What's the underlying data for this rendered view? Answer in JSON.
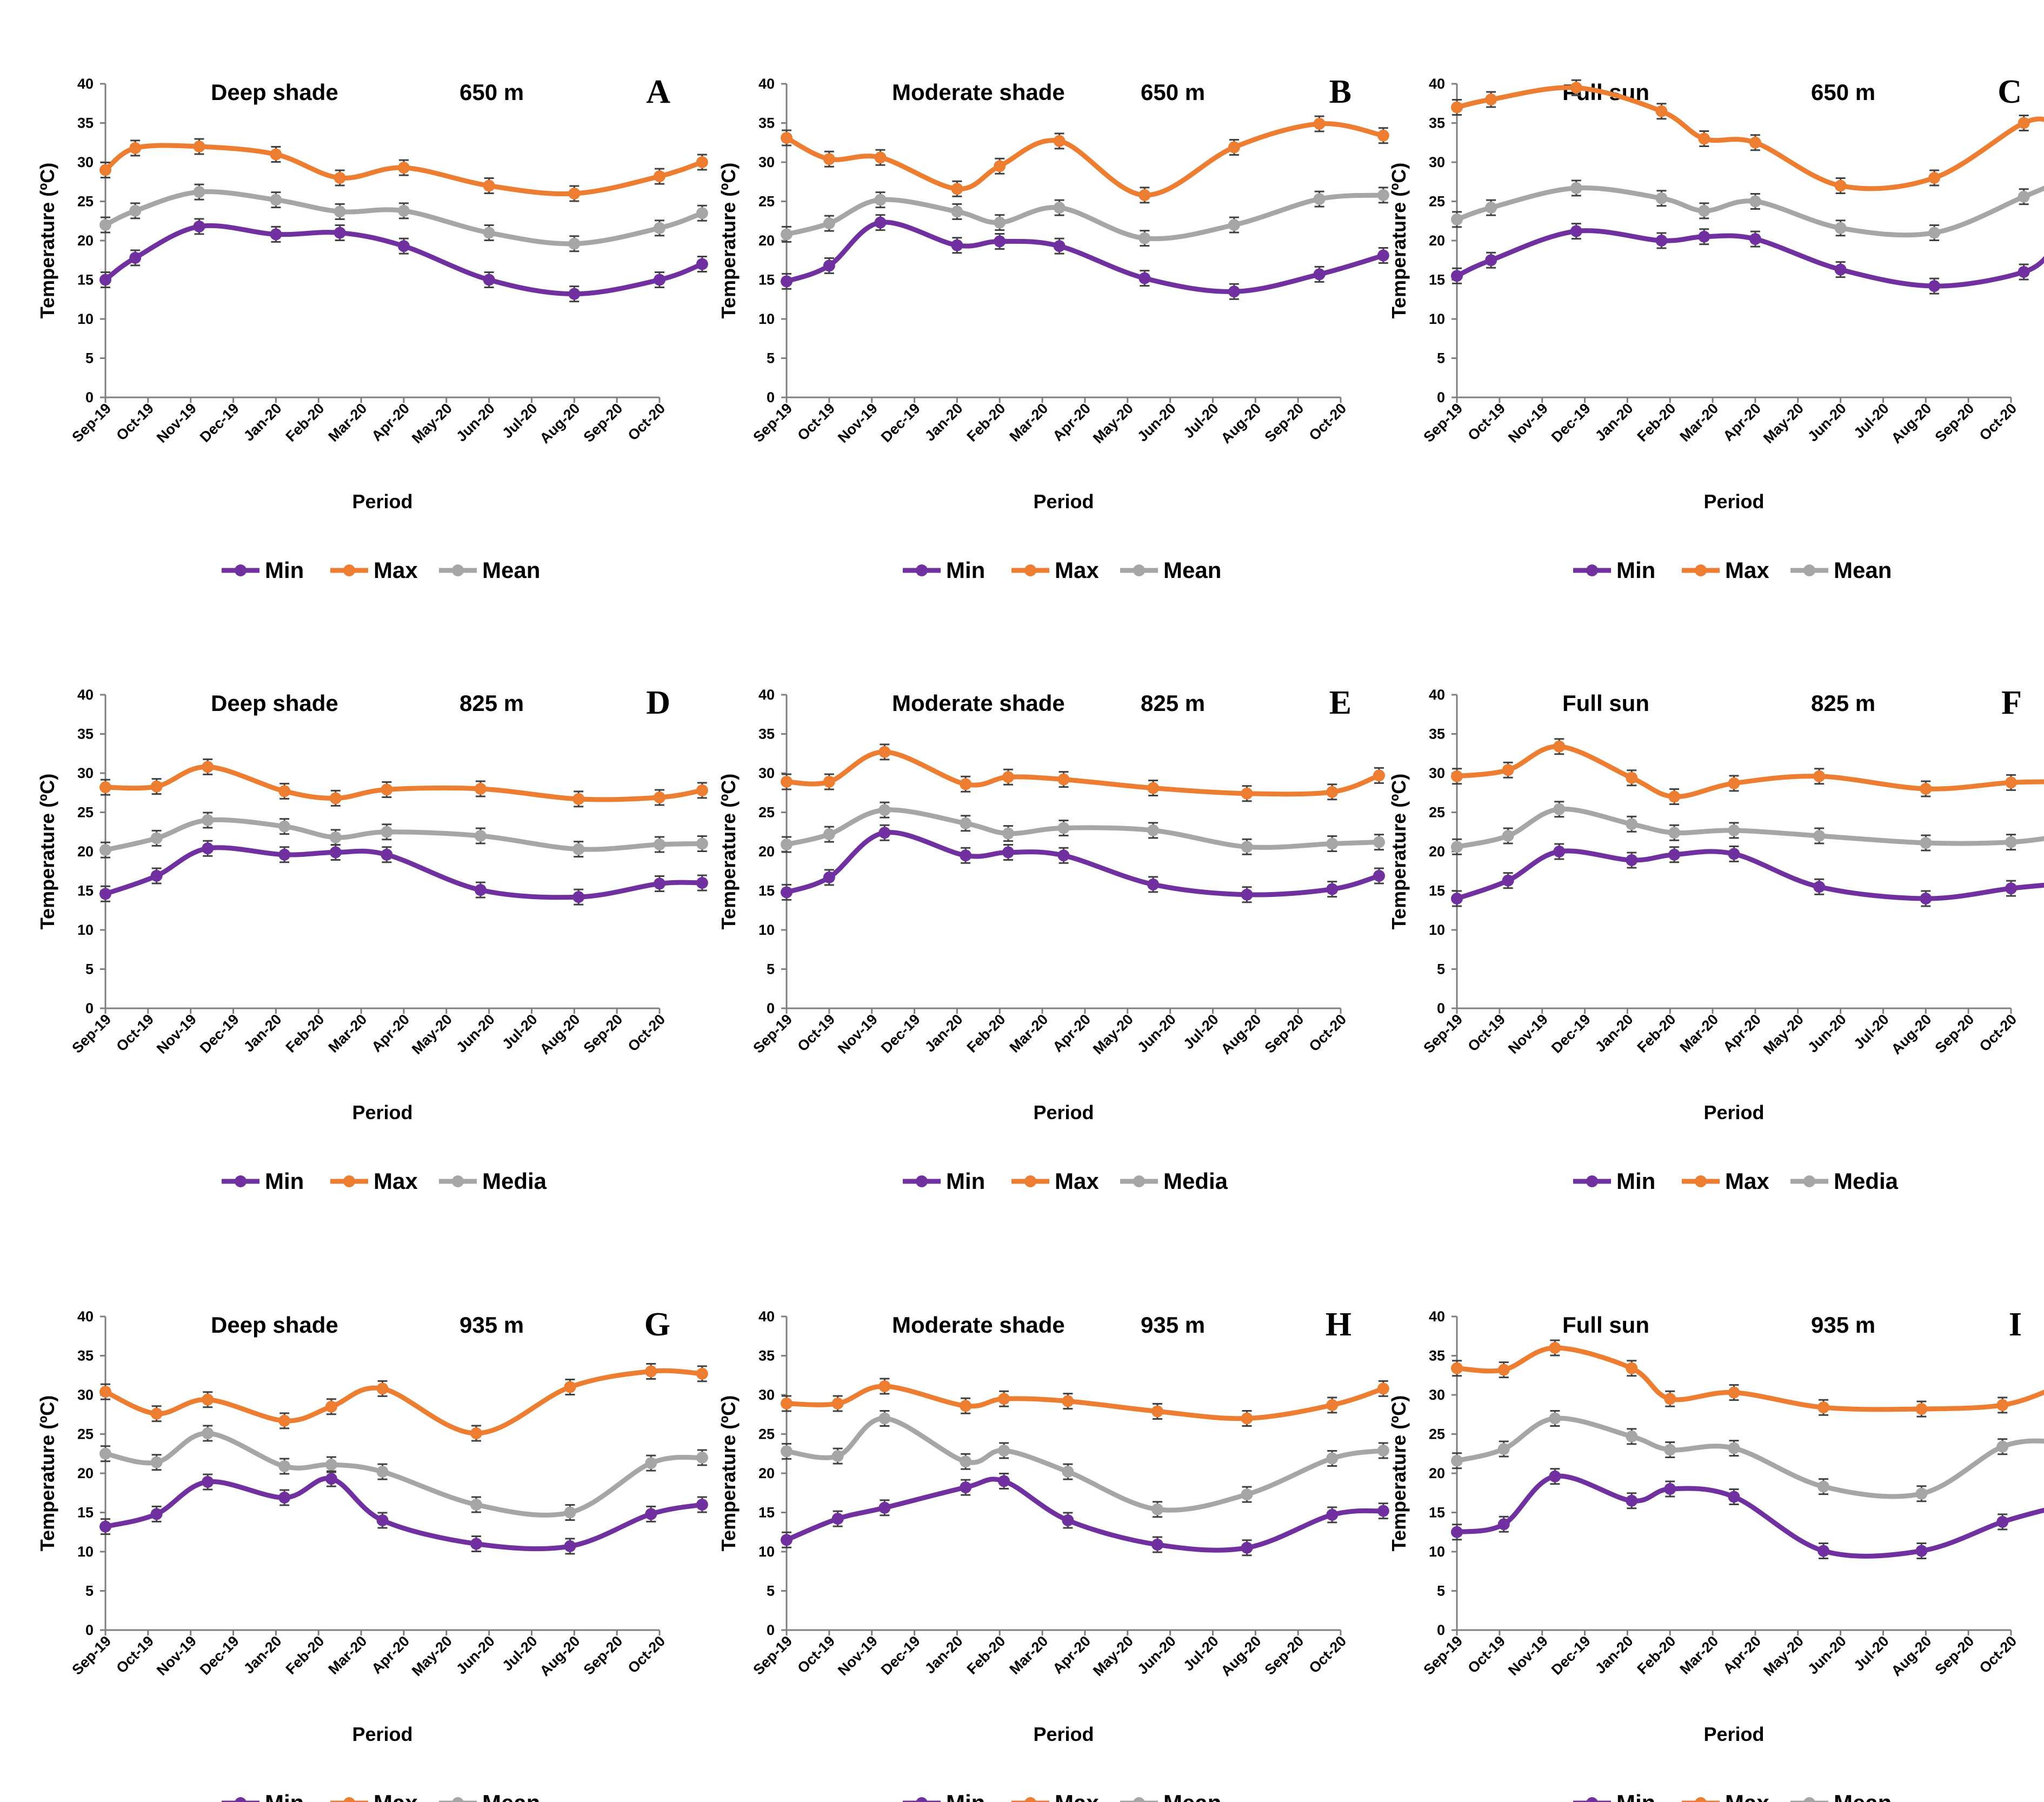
{
  "figure": {
    "legend_position": "bottom-center",
    "colors": {
      "Min": "#7030a0",
      "Max": "#ed7d31",
      "Mean": "#a6a6a6",
      "Media": "#a6a6a6"
    }
  },
  "chart_data": [
    {
      "panel": "A",
      "type": "line",
      "title": "Deep shade",
      "elevation": "650 m",
      "xlabel": "Period",
      "ylabel": "Temperature (ºC)",
      "ylim": [
        0,
        40
      ],
      "yticks": [
        0,
        5,
        10,
        15,
        20,
        25,
        30,
        35,
        40
      ],
      "grid": false,
      "categories": [
        "Sep-19",
        "Oct-19",
        "Nov-19",
        "Dec-19",
        "Jan-20",
        "Feb-20",
        "Mar-20",
        "Apr-20",
        "May-20",
        "Jun-20",
        "Jul-20",
        "Aug-20",
        "Sep-20",
        "Oct-20"
      ],
      "series": [
        {
          "name": "Min",
          "x": [
            0,
            0.7,
            2.2,
            4,
            5.5,
            7,
            9,
            11,
            13,
            14
          ],
          "values": [
            15,
            17.8,
            21.8,
            20.8,
            21,
            19.3,
            15,
            13.2,
            15,
            17
          ]
        },
        {
          "name": "Max",
          "x": [
            0,
            0.7,
            2.2,
            4,
            5.5,
            7,
            9,
            11,
            13,
            14
          ],
          "values": [
            29,
            31.8,
            32,
            31,
            28,
            29.3,
            27,
            26,
            28.2,
            30
          ]
        },
        {
          "name": "Mean",
          "x": [
            0,
            0.7,
            2.2,
            4,
            5.5,
            7,
            9,
            11,
            13,
            14
          ],
          "values": [
            22,
            23.8,
            26.2,
            25.2,
            23.7,
            23.8,
            21,
            19.6,
            21.6,
            23.5
          ]
        }
      ]
    },
    {
      "panel": "B",
      "type": "line",
      "title": "Moderate shade",
      "elevation": "650 m",
      "xlabel": "Period",
      "ylabel": "Temperature (ºC)",
      "ylim": [
        0,
        40
      ],
      "yticks": [
        0,
        5,
        10,
        15,
        20,
        25,
        30,
        35,
        40
      ],
      "grid": false,
      "categories": [
        "Sep-19",
        "Oct-19",
        "Nov-19",
        "Dec-19",
        "Jan-20",
        "Feb-20",
        "Mar-20",
        "Apr-20",
        "May-20",
        "Jun-20",
        "Jul-20",
        "Aug-20",
        "Sep-20",
        "Oct-20"
      ],
      "series": [
        {
          "name": "Min",
          "x": [
            0,
            1,
            2.2,
            4,
            5,
            6.4,
            8.4,
            10.5,
            12.5,
            14
          ],
          "values": [
            14.8,
            16.8,
            22.3,
            19.4,
            19.9,
            19.3,
            15.2,
            13.5,
            15.7,
            18.1
          ]
        },
        {
          "name": "Max",
          "x": [
            0,
            1,
            2.2,
            4,
            5,
            6.4,
            8.4,
            10.5,
            12.5,
            14
          ],
          "values": [
            33.1,
            30.4,
            30.6,
            26.6,
            29.5,
            32.7,
            25.8,
            31.9,
            34.9,
            33.4
          ]
        },
        {
          "name": "Mean",
          "x": [
            0,
            1,
            2.2,
            4,
            5,
            6.4,
            8.4,
            10.5,
            12.5,
            14
          ],
          "values": [
            20.8,
            22.2,
            25.2,
            23.7,
            22.3,
            24.2,
            20.3,
            22,
            25.3,
            25.8
          ]
        }
      ]
    },
    {
      "panel": "C",
      "type": "line",
      "title": "Full sun",
      "elevation": "650 m",
      "xlabel": "Period",
      "ylabel": "Temperature (ºC)",
      "ylim": [
        0,
        40
      ],
      "yticks": [
        0,
        5,
        10,
        15,
        20,
        25,
        30,
        35,
        40
      ],
      "grid": false,
      "categories": [
        "Sep-19",
        "Oct-19",
        "Nov-19",
        "Dec-19",
        "Jan-20",
        "Feb-20",
        "Mar-20",
        "Apr-20",
        "May-20",
        "Jun-20",
        "Jul-20",
        "Aug-20",
        "Sep-20",
        "Oct-20"
      ],
      "series": [
        {
          "name": "Min",
          "x": [
            0,
            0.8,
            2.8,
            4.8,
            5.8,
            7,
            9,
            11.2,
            13.3,
            14
          ],
          "values": [
            15.5,
            17.5,
            21.2,
            20,
            20.5,
            20.2,
            16.3,
            14.2,
            16,
            19
          ]
        },
        {
          "name": "Max",
          "x": [
            0,
            0.8,
            2.8,
            4.8,
            5.8,
            7,
            9,
            11.2,
            13.3,
            14
          ],
          "values": [
            37,
            38,
            39.5,
            36.5,
            33,
            32.5,
            27,
            28,
            35,
            35
          ]
        },
        {
          "name": "Mean",
          "x": [
            0,
            0.8,
            2.8,
            4.8,
            5.8,
            7,
            9,
            11.2,
            13.3,
            14
          ],
          "values": [
            22.7,
            24.2,
            26.7,
            25.4,
            23.8,
            25,
            21.6,
            21,
            25.6,
            27.2
          ]
        }
      ]
    },
    {
      "panel": "D",
      "type": "line",
      "title": "Deep shade",
      "elevation": "825 m",
      "xlabel": "Period",
      "ylabel": "Temperature (ºC)",
      "ylim": [
        0,
        40
      ],
      "yticks": [
        0,
        5,
        10,
        15,
        20,
        25,
        30,
        35,
        40
      ],
      "grid": false,
      "categories": [
        "Sep-19",
        "Oct-19",
        "Nov-19",
        "Dec-19",
        "Jan-20",
        "Feb-20",
        "Mar-20",
        "Apr-20",
        "May-20",
        "Jun-20",
        "Jul-20",
        "Aug-20",
        "Sep-20",
        "Oct-20"
      ],
      "series": [
        {
          "name": "Min",
          "x": [
            0,
            1.2,
            2.4,
            4.2,
            5.4,
            6.6,
            8.8,
            11.1,
            13,
            14
          ],
          "values": [
            14.6,
            16.9,
            20.4,
            19.6,
            19.9,
            19.6,
            15.1,
            14.2,
            15.9,
            16
          ]
        },
        {
          "name": "Max",
          "x": [
            0,
            1.2,
            2.4,
            4.2,
            5.4,
            6.6,
            8.8,
            11.1,
            13,
            14
          ],
          "values": [
            28.2,
            28.3,
            30.8,
            27.7,
            26.8,
            27.9,
            28,
            26.7,
            26.9,
            27.8
          ]
        },
        {
          "name": "Media",
          "x": [
            0,
            1.2,
            2.4,
            4.2,
            5.4,
            6.6,
            8.8,
            11.1,
            13,
            14
          ],
          "values": [
            20.2,
            21.7,
            24,
            23.2,
            21.8,
            22.5,
            22,
            20.3,
            20.9,
            21
          ]
        }
      ]
    },
    {
      "panel": "E",
      "type": "line",
      "title": "Moderate shade",
      "elevation": "825 m",
      "xlabel": "Period",
      "ylabel": "Temperature (ºC)",
      "ylim": [
        0,
        40
      ],
      "yticks": [
        0,
        5,
        10,
        15,
        20,
        25,
        30,
        35,
        40
      ],
      "grid": false,
      "categories": [
        "Sep-19",
        "Oct-19",
        "Nov-19",
        "Dec-19",
        "Jan-20",
        "Feb-20",
        "Mar-20",
        "Apr-20",
        "May-20",
        "Jun-20",
        "Jul-20",
        "Aug-20",
        "Sep-20",
        "Oct-20"
      ],
      "series": [
        {
          "name": "Min",
          "x": [
            0,
            1,
            2.3,
            4.2,
            5.2,
            6.5,
            8.6,
            10.8,
            12.8,
            13.9
          ],
          "values": [
            14.8,
            16.7,
            22.4,
            19.5,
            19.9,
            19.5,
            15.8,
            14.5,
            15.2,
            16.9
          ]
        },
        {
          "name": "Max",
          "x": [
            0,
            1,
            2.3,
            4.2,
            5.2,
            6.5,
            8.6,
            10.8,
            12.8,
            13.9
          ],
          "values": [
            28.9,
            28.9,
            32.7,
            28.6,
            29.5,
            29.2,
            28.1,
            27.4,
            27.6,
            29.7
          ]
        },
        {
          "name": "Media",
          "x": [
            0,
            1,
            2.3,
            4.2,
            5.2,
            6.5,
            8.6,
            10.8,
            12.8,
            13.9
          ],
          "values": [
            20.9,
            22.2,
            25.3,
            23.6,
            22.3,
            23,
            22.7,
            20.6,
            21,
            21.2
          ]
        }
      ]
    },
    {
      "panel": "F",
      "type": "line",
      "title": "Full sun",
      "elevation": "825 m",
      "xlabel": "Period",
      "ylabel": "Temperature (ºC)",
      "ylim": [
        0,
        40
      ],
      "yticks": [
        0,
        5,
        10,
        15,
        20,
        25,
        30,
        35,
        40
      ],
      "grid": false,
      "categories": [
        "Sep-19",
        "Oct-19",
        "Nov-19",
        "Dec-19",
        "Jan-20",
        "Feb-20",
        "Mar-20",
        "Apr-20",
        "May-20",
        "Jun-20",
        "Jul-20",
        "Aug-20",
        "Sep-20",
        "Oct-20"
      ],
      "series": [
        {
          "name": "Min",
          "x": [
            0,
            1.2,
            2.4,
            4.1,
            5.1,
            6.5,
            8.5,
            11,
            13,
            14.2
          ],
          "values": [
            14,
            16.3,
            20,
            18.9,
            19.6,
            19.7,
            15.5,
            14,
            15.3,
            15.9
          ]
        },
        {
          "name": "Max",
          "x": [
            0,
            1.2,
            2.4,
            4.1,
            5.1,
            6.5,
            8.5,
            11,
            13,
            14.2
          ],
          "values": [
            29.6,
            30.4,
            33.4,
            29.4,
            27,
            28.7,
            29.6,
            28,
            28.8,
            28.9
          ]
        },
        {
          "name": "Media",
          "x": [
            0,
            1.2,
            2.4,
            4.1,
            5.1,
            6.5,
            8.5,
            11,
            13,
            14.2
          ],
          "values": [
            20.6,
            22,
            25.4,
            23.5,
            22.4,
            22.7,
            22,
            21.1,
            21.2,
            22
          ]
        }
      ]
    },
    {
      "panel": "G",
      "type": "line",
      "title": "Deep shade",
      "elevation": "935 m",
      "xlabel": "Period",
      "ylabel": "Temperature (ºC)",
      "ylim": [
        0,
        40
      ],
      "yticks": [
        0,
        5,
        10,
        15,
        20,
        25,
        30,
        35,
        40
      ],
      "grid": false,
      "categories": [
        "Sep-19",
        "Oct-19",
        "Nov-19",
        "Dec-19",
        "Jan-20",
        "Feb-20",
        "Mar-20",
        "Apr-20",
        "May-20",
        "Jun-20",
        "Jul-20",
        "Aug-20",
        "Sep-20",
        "Oct-20"
      ],
      "series": [
        {
          "name": "Min",
          "x": [
            0,
            1.2,
            2.4,
            4.2,
            5.3,
            6.5,
            8.7,
            10.9,
            12.8,
            14
          ],
          "values": [
            13.2,
            14.8,
            18.9,
            16.9,
            19.3,
            14,
            11,
            10.7,
            14.8,
            16
          ]
        },
        {
          "name": "Max",
          "x": [
            0,
            1.2,
            2.4,
            4.2,
            5.3,
            6.5,
            8.7,
            10.9,
            12.8,
            14
          ],
          "values": [
            30.4,
            27.6,
            29.4,
            26.7,
            28.5,
            30.8,
            25.1,
            31,
            33,
            32.7
          ]
        },
        {
          "name": "Mean",
          "x": [
            0,
            1.2,
            2.4,
            4.2,
            5.3,
            6.5,
            8.7,
            10.9,
            12.8,
            14
          ],
          "values": [
            22.5,
            21.4,
            25.1,
            20.9,
            21.1,
            20.2,
            16,
            15,
            21.3,
            22
          ]
        }
      ]
    },
    {
      "panel": "H",
      "type": "line",
      "title": "Moderate shade",
      "elevation": "935 m",
      "xlabel": "Period",
      "ylabel": "Temperature (ºC)",
      "ylim": [
        0,
        40
      ],
      "yticks": [
        0,
        5,
        10,
        15,
        20,
        25,
        30,
        35,
        40
      ],
      "grid": false,
      "categories": [
        "Sep-19",
        "Oct-19",
        "Nov-19",
        "Dec-19",
        "Jan-20",
        "Feb-20",
        "Mar-20",
        "Apr-20",
        "May-20",
        "Jun-20",
        "Jul-20",
        "Aug-20",
        "Sep-20",
        "Oct-20"
      ],
      "series": [
        {
          "name": "Min",
          "x": [
            0,
            1.2,
            2.3,
            4.2,
            5.1,
            6.6,
            8.7,
            10.8,
            12.8,
            14
          ],
          "values": [
            11.5,
            14.2,
            15.6,
            18.2,
            19,
            14,
            10.9,
            10.5,
            14.7,
            15.2
          ]
        },
        {
          "name": "Max",
          "x": [
            0,
            1.2,
            2.3,
            4.2,
            5.1,
            6.6,
            8.7,
            10.8,
            12.8,
            14
          ],
          "values": [
            28.9,
            28.9,
            31.1,
            28.6,
            29.5,
            29.2,
            27.9,
            27,
            28.7,
            30.8
          ]
        },
        {
          "name": "Mean",
          "x": [
            0,
            1.2,
            2.3,
            4.2,
            5.1,
            6.6,
            8.7,
            10.8,
            12.8,
            14
          ],
          "values": [
            22.8,
            22.2,
            27,
            21.5,
            22.9,
            20.2,
            15.4,
            17.3,
            21.9,
            22.9
          ]
        }
      ]
    },
    {
      "panel": "I",
      "type": "line",
      "title": "Full sun",
      "elevation": "935 m",
      "xlabel": "Period",
      "ylabel": "Temperature (ºC)",
      "ylim": [
        0,
        40
      ],
      "yticks": [
        0,
        5,
        10,
        15,
        20,
        25,
        30,
        35,
        40
      ],
      "grid": false,
      "categories": [
        "Sep-19",
        "Oct-19",
        "Nov-19",
        "Dec-19",
        "Jan-20",
        "Feb-20",
        "Mar-20",
        "Apr-20",
        "May-20",
        "Jun-20",
        "Jul-20",
        "Aug-20",
        "Sep-20",
        "Oct-20"
      ],
      "series": [
        {
          "name": "Min",
          "x": [
            0,
            1.1,
            2.3,
            4.1,
            5,
            6.5,
            8.6,
            10.9,
            12.8,
            14
          ],
          "values": [
            12.5,
            13.5,
            19.6,
            16.5,
            18,
            17,
            10.1,
            10.1,
            13.8,
            15.6
          ]
        },
        {
          "name": "Max",
          "x": [
            0,
            1.1,
            2.3,
            4.1,
            5,
            6.5,
            8.6,
            10.9,
            12.8,
            14
          ],
          "values": [
            33.4,
            33.2,
            36,
            33.4,
            29.5,
            30.3,
            28.4,
            28.2,
            28.7,
            30.8
          ]
        },
        {
          "name": "Mean",
          "x": [
            0,
            1.1,
            2.3,
            4.1,
            5,
            6.5,
            8.6,
            10.9,
            12.8,
            14
          ],
          "values": [
            21.6,
            23.1,
            27,
            24.7,
            23,
            23.2,
            18.3,
            17.4,
            23.4,
            24.1
          ]
        }
      ]
    }
  ]
}
